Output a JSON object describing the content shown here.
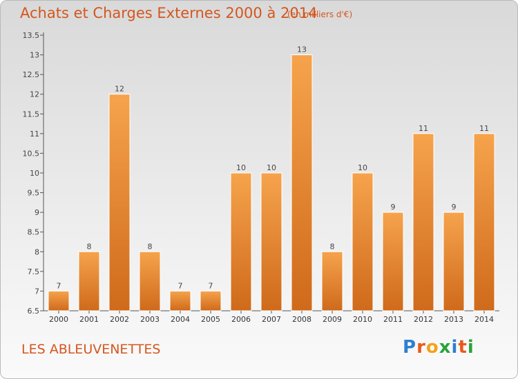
{
  "title": "Achats et Charges Externes 2000 à 2014",
  "subtitle": "(en milliers d'€)",
  "place": "LES ABLEUVENETTES",
  "logo": {
    "letters": [
      "P",
      "r",
      "o",
      "x",
      "i",
      "t",
      "i"
    ],
    "colors": [
      "#2e7fd1",
      "#e85a1b",
      "#f2a21a",
      "#2aa339",
      "#2e7fd1",
      "#e85a1b",
      "#2aa339"
    ]
  },
  "colors": {
    "bar_light": "#f6a34c",
    "bar_dark": "#cf6a1b",
    "accent": "#d4561e"
  },
  "chart_data": {
    "type": "bar",
    "categories": [
      "2000",
      "2001",
      "2002",
      "2003",
      "2004",
      "2005",
      "2006",
      "2007",
      "2008",
      "2009",
      "2010",
      "2011",
      "2012",
      "2013",
      "2014"
    ],
    "values": [
      7,
      8,
      12,
      8,
      7,
      7,
      10,
      10,
      13,
      8,
      10,
      9,
      11,
      9,
      11
    ],
    "data_labels": [
      "7",
      "8",
      "12",
      "8",
      "7",
      "7",
      "10",
      "10",
      "13",
      "8",
      "10",
      "9",
      "11",
      "9",
      "11"
    ],
    "yticks": [
      "6.5",
      "7",
      "7.5",
      "8",
      "8.5",
      "9",
      "9.5",
      "10",
      "10.5",
      "11",
      "11.5",
      "12",
      "12.5",
      "13",
      "13.5"
    ],
    "ylim": [
      6.5,
      13.5
    ],
    "grid": false,
    "title": "Achats et Charges Externes 2000 à 2014",
    "xlabel": "",
    "ylabel": ""
  }
}
